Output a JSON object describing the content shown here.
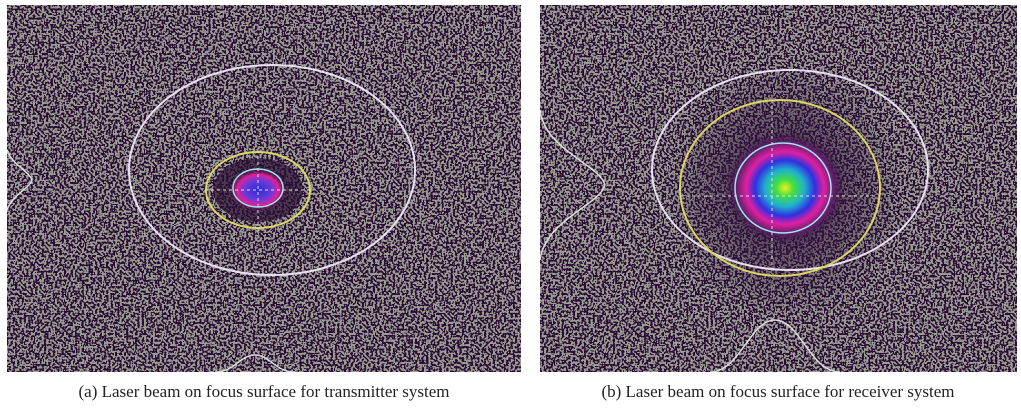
{
  "panels": [
    {
      "caption": "(a) Laser beam on focus surface for transmitter system"
    },
    {
      "caption": "(b) Laser beam on focus surface for receiver system"
    }
  ]
}
